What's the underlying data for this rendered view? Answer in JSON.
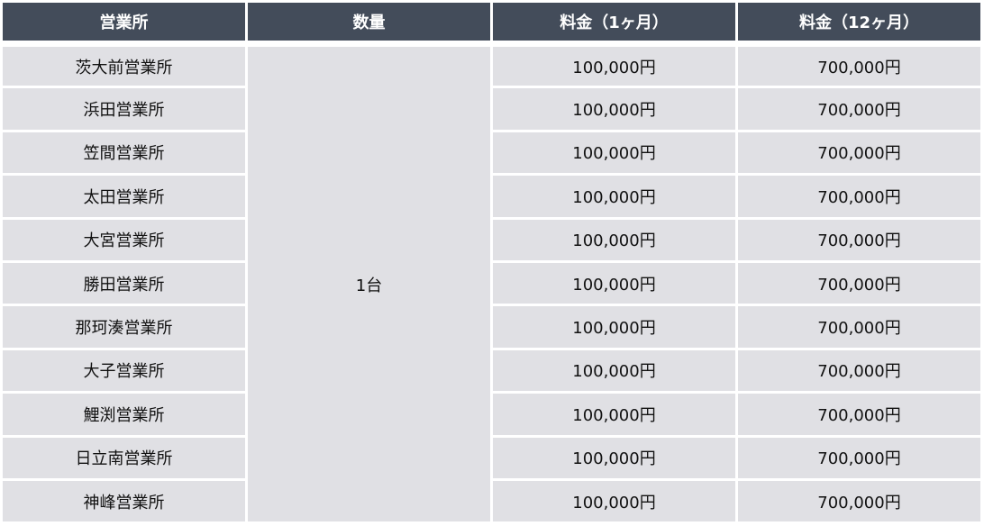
{
  "table": {
    "headers": [
      "営業所",
      "数量",
      "料金（1ヶ月）",
      "料金（12ヶ月）"
    ],
    "quantity": "1台",
    "rows": [
      {
        "office": "茨大前営業所",
        "monthly": "100,000円",
        "yearly": "700,000円"
      },
      {
        "office": "浜田営業所",
        "monthly": "100,000円",
        "yearly": "700,000円"
      },
      {
        "office": "笠間営業所",
        "monthly": "100,000円",
        "yearly": "700,000円"
      },
      {
        "office": "太田営業所",
        "monthly": "100,000円",
        "yearly": "700,000円"
      },
      {
        "office": "大宮営業所",
        "monthly": "100,000円",
        "yearly": "700,000円"
      },
      {
        "office": "勝田営業所",
        "monthly": "100,000円",
        "yearly": "700,000円"
      },
      {
        "office": "那珂湊営業所",
        "monthly": "100,000円",
        "yearly": "700,000円"
      },
      {
        "office": "大子営業所",
        "monthly": "100,000円",
        "yearly": "700,000円"
      },
      {
        "office": "鯉渕営業所",
        "monthly": "100,000円",
        "yearly": "700,000円"
      },
      {
        "office": "日立南営業所",
        "monthly": "100,000円",
        "yearly": "700,000円"
      },
      {
        "office": "神峰営業所",
        "monthly": "100,000円",
        "yearly": "700,000円"
      }
    ]
  },
  "colors": {
    "header_bg": "#434c5a",
    "cell_bg": "#e0e0e4"
  }
}
